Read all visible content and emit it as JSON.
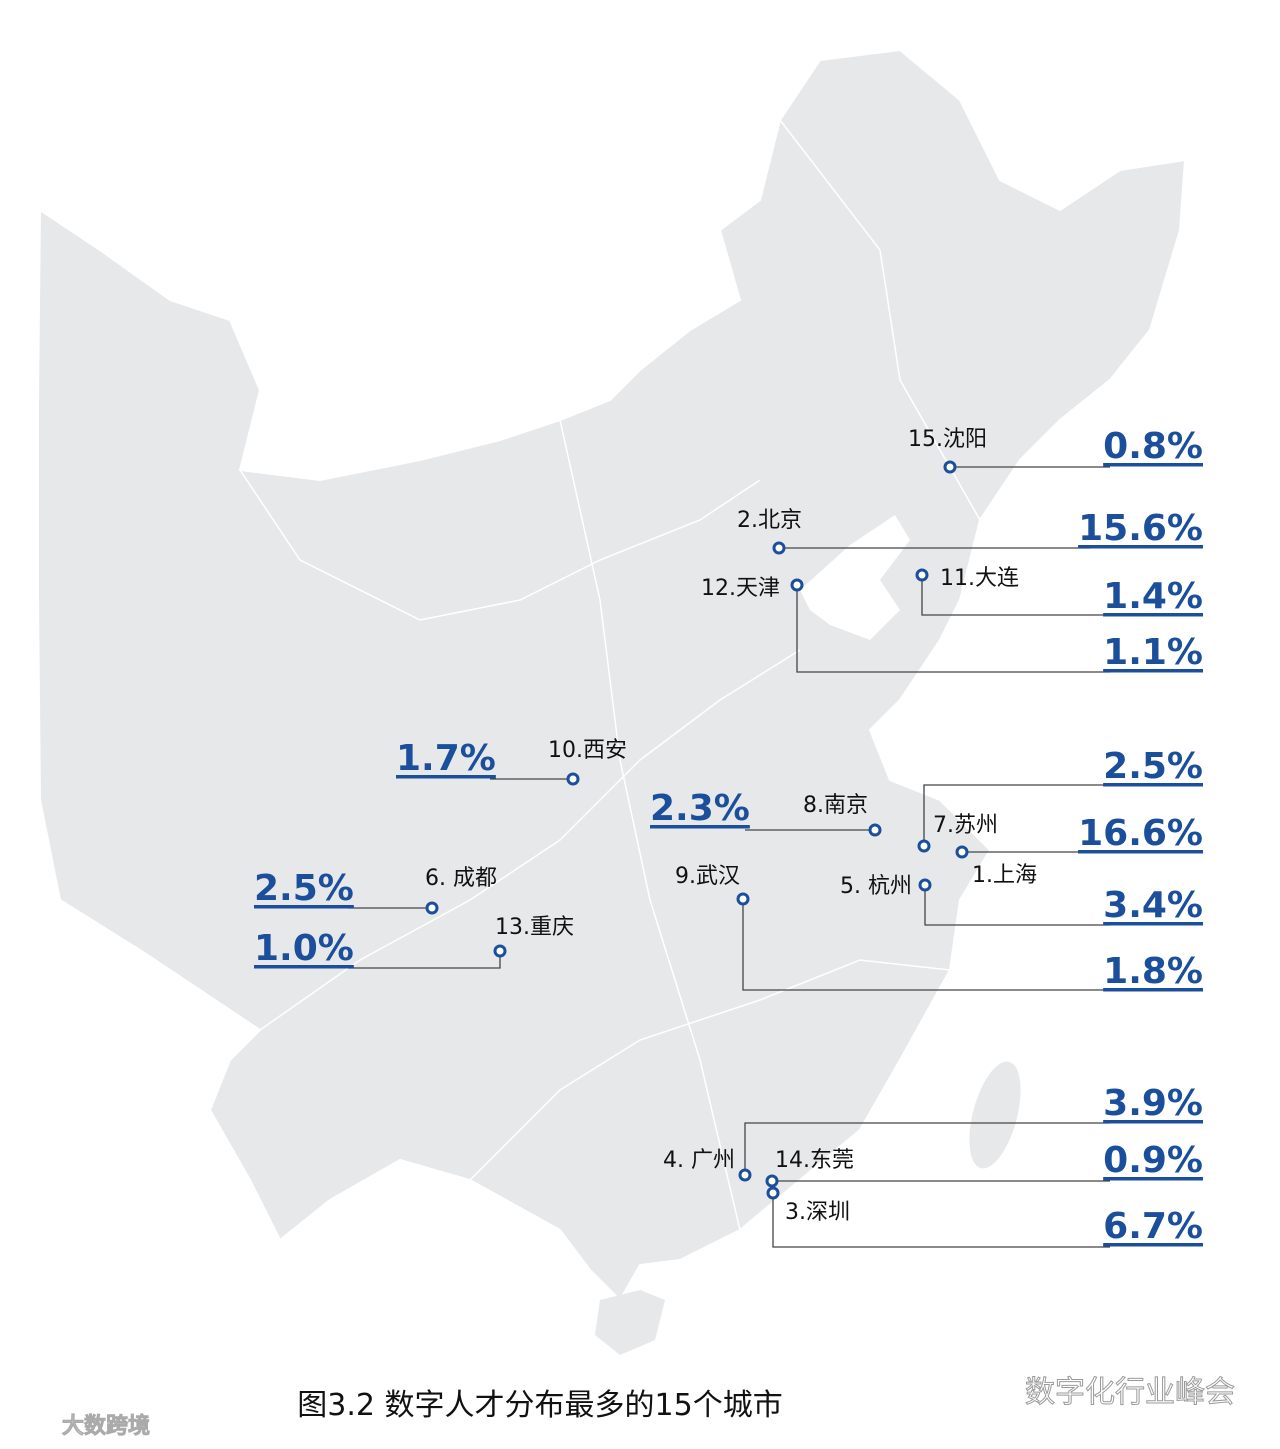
{
  "caption": "图3.2 数字人才分布最多的15个城市",
  "watermark": "数字化行业峰会",
  "corner_watermark": "大数跨境",
  "cities": [
    {
      "label": "15.沈阳",
      "share": "0.8%"
    },
    {
      "label": "2.北京",
      "share": "15.6%"
    },
    {
      "label": "11.大连",
      "share": "1.4%"
    },
    {
      "label": "12.天津",
      "share": "1.1%"
    },
    {
      "label": "10.西安",
      "share": "1.7%"
    },
    {
      "label": "8.南京",
      "share": "2.3%"
    },
    {
      "label": "7.苏州",
      "share": "2.5%"
    },
    {
      "label": "1.上海",
      "share": "16.6%"
    },
    {
      "label": "5. 杭州",
      "share": "3.4%"
    },
    {
      "label": "9.武汉",
      "share": "1.8%"
    },
    {
      "label": "6. 成都",
      "share": "2.5%"
    },
    {
      "label": "13.重庆",
      "share": "1.0%"
    },
    {
      "label": "4. 广州",
      "share": "3.9%"
    },
    {
      "label": "14.东莞",
      "share": "0.9%"
    },
    {
      "label": "3.深圳",
      "share": "6.7%"
    }
  ]
}
